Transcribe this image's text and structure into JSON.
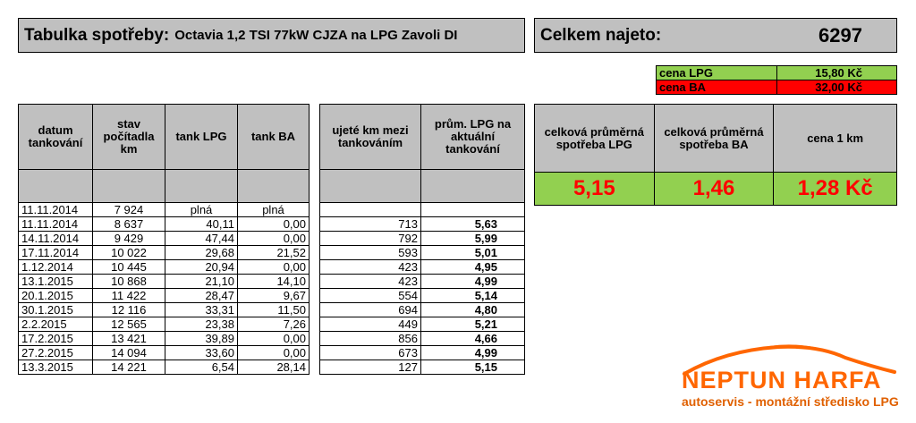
{
  "title": {
    "main": "Tabulka spotřeby:",
    "sub": "Octavia 1,2 TSI 77kW CJZA na LPG Zavoli DI"
  },
  "total": {
    "label": "Celkem najeto:",
    "value": "6297"
  },
  "prices": [
    {
      "label": "cena LPG",
      "value": "15,80 Kč",
      "color": "#92d050"
    },
    {
      "label": "cena BA",
      "value": "32,00 Kč",
      "color": "#ff0000"
    }
  ],
  "summary": {
    "headers": [
      "celková průměrná spotřeba LPG",
      "celková průměrná spotřeba BA",
      "cena 1 km"
    ],
    "values": [
      "5,15",
      "1,46",
      "1,28 Kč"
    ]
  },
  "left_table": {
    "headers": [
      "datum tankování",
      "stav počítadla km",
      "tank LPG",
      "tank BA"
    ],
    "rows": [
      [
        "11.11.2014",
        "7 924",
        "plná",
        "plná"
      ],
      [
        "11.11.2014",
        "8 637",
        "40,11",
        "0,00"
      ],
      [
        "14.11.2014",
        "9 429",
        "47,44",
        "0,00"
      ],
      [
        "17.11.2014",
        "10 022",
        "29,68",
        "21,52"
      ],
      [
        "1.12.2014",
        "10 445",
        "20,94",
        "0,00"
      ],
      [
        "13.1.2015",
        "10 868",
        "21,10",
        "14,10"
      ],
      [
        "20.1.2015",
        "11 422",
        "28,47",
        "9,67"
      ],
      [
        "30.1.2015",
        "12 116",
        "33,31",
        "11,50"
      ],
      [
        "2.2.2015",
        "12 565",
        "23,38",
        "7,26"
      ],
      [
        "17.2.2015",
        "13 421",
        "39,89",
        "0,00"
      ],
      [
        "27.2.2015",
        "14 094",
        "33,60",
        "0,00"
      ],
      [
        "13.3.2015",
        "14 221",
        "6,54",
        "28,14"
      ]
    ]
  },
  "right_table": {
    "headers": [
      "ujeté km mezi tankováním",
      "prům. LPG na aktuální tankování"
    ],
    "rows": [
      [
        "",
        ""
      ],
      [
        "713",
        "5,63"
      ],
      [
        "792",
        "5,99"
      ],
      [
        "593",
        "5,01"
      ],
      [
        "423",
        "4,95"
      ],
      [
        "423",
        "4,99"
      ],
      [
        "554",
        "5,14"
      ],
      [
        "694",
        "4,80"
      ],
      [
        "449",
        "5,21"
      ],
      [
        "856",
        "4,66"
      ],
      [
        "673",
        "4,99"
      ],
      [
        "127",
        "5,15"
      ]
    ]
  },
  "logo": {
    "name": "NEPTUN HARFA",
    "tagline": "autoservis - montážní středisko LPG",
    "color": "#ff6600",
    "tagline_color": "#e06000"
  }
}
